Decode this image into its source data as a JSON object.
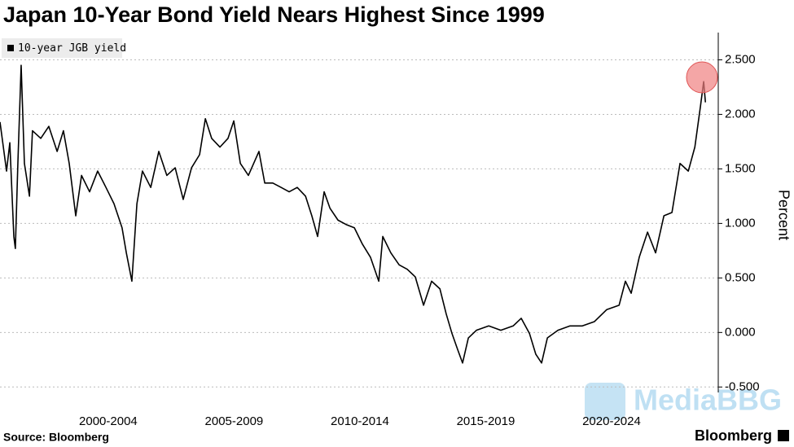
{
  "chart_data": {
    "type": "line",
    "title": "Japan 10-Year Bond Yield Nears Highest Since 1999",
    "y_label": "Percent",
    "source": "Source: Bloomberg",
    "brand": "Bloomberg",
    "watermark": "MediaBBG",
    "grid": true,
    "xlim": [
      1998.2,
      2026.74
    ],
    "ylim": [
      -0.55,
      2.75
    ],
    "xticks": [
      {
        "value": 2002.5,
        "label": "2000-2004"
      },
      {
        "value": 2007.5,
        "label": "2005-2009"
      },
      {
        "value": 2012.5,
        "label": "2010-2014"
      },
      {
        "value": 2017.5,
        "label": "2015-2019"
      },
      {
        "value": 2022.5,
        "label": "2020-2024"
      }
    ],
    "yticks": [
      {
        "value": 2.5,
        "label": "2.500"
      },
      {
        "value": 2,
        "label": "2.000"
      },
      {
        "value": 1.5,
        "label": "1.500"
      },
      {
        "value": 1,
        "label": "1.000"
      },
      {
        "value": 0.5,
        "label": "0.500"
      },
      {
        "value": 0,
        "label": "0.000"
      },
      {
        "value": -0.5,
        "label": "-0.500"
      }
    ],
    "x": [
      1998.2,
      1998.46,
      1998.59,
      1998.75,
      1998.81,
      1998.91,
      1999.04,
      1999.17,
      1999.37,
      1999.49,
      1999.82,
      2000.14,
      2000.47,
      2000.72,
      2000.95,
      2001.21,
      2001.44,
      2001.76,
      2002.08,
      2002.41,
      2002.73,
      2003.05,
      2003.22,
      2003.44,
      2003.64,
      2003.86,
      2004.19,
      2004.51,
      2004.83,
      2005.16,
      2005.48,
      2005.81,
      2006.13,
      2006.36,
      2006.61,
      2006.94,
      2007.26,
      2007.49,
      2007.75,
      2008.07,
      2008.49,
      2008.72,
      2009.04,
      2009.37,
      2009.69,
      2010.01,
      2010.34,
      2010.59,
      2010.82,
      2011.08,
      2011.31,
      2011.63,
      2011.95,
      2012.28,
      2012.6,
      2012.92,
      2013.25,
      2013.41,
      2013.73,
      2014.06,
      2014.38,
      2014.7,
      2015.03,
      2015.35,
      2015.68,
      2015.93,
      2016.16,
      2016.39,
      2016.58,
      2016.81,
      2017.13,
      2017.62,
      2018.1,
      2018.59,
      2018.91,
      2019.24,
      2019.49,
      2019.72,
      2019.95,
      2020.37,
      2020.85,
      2021.34,
      2021.82,
      2022.31,
      2022.8,
      2023.05,
      2023.28,
      2023.6,
      2023.93,
      2024.25,
      2024.58,
      2024.9,
      2025.22,
      2025.55,
      2025.81,
      2026.03,
      2026.16,
      2026.23
    ],
    "series": [
      {
        "name": "10-year JGB yield",
        "color": "#000000",
        "values": [
          1.93,
          1.48,
          1.74,
          0.88,
          0.77,
          1.55,
          2.45,
          1.55,
          1.25,
          1.85,
          1.78,
          1.89,
          1.66,
          1.85,
          1.55,
          1.07,
          1.44,
          1.29,
          1.48,
          1.33,
          1.18,
          0.96,
          0.73,
          0.47,
          1.18,
          1.48,
          1.33,
          1.66,
          1.44,
          1.51,
          1.22,
          1.51,
          1.63,
          1.96,
          1.78,
          1.7,
          1.78,
          1.94,
          1.55,
          1.44,
          1.66,
          1.37,
          1.37,
          1.33,
          1.29,
          1.33,
          1.25,
          1.07,
          0.88,
          1.29,
          1.14,
          1.03,
          0.99,
          0.96,
          0.81,
          0.69,
          0.47,
          0.88,
          0.73,
          0.62,
          0.58,
          0.51,
          0.25,
          0.47,
          0.4,
          0.17,
          -0.01,
          -0.16,
          -0.28,
          -0.05,
          0.02,
          0.06,
          0.02,
          0.06,
          0.13,
          -0.01,
          -0.2,
          -0.28,
          -0.05,
          0.02,
          0.06,
          0.06,
          0.1,
          0.21,
          0.25,
          0.47,
          0.36,
          0.69,
          0.92,
          0.73,
          1.07,
          1.1,
          1.55,
          1.48,
          1.7,
          2.07,
          2.3,
          2.11
        ]
      }
    ]
  }
}
